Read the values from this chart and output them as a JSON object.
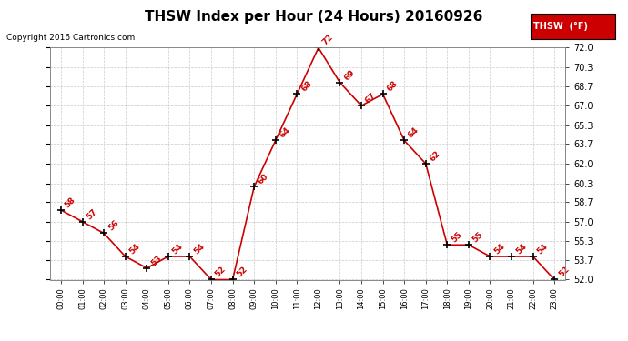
{
  "title": "THSW Index per Hour (24 Hours) 20160926",
  "copyright": "Copyright 2016 Cartronics.com",
  "legend_label": "THSW  (°F)",
  "hours": [
    0,
    1,
    2,
    3,
    4,
    5,
    6,
    7,
    8,
    9,
    10,
    11,
    12,
    13,
    14,
    15,
    16,
    17,
    18,
    19,
    20,
    21,
    22,
    23
  ],
  "values": [
    58,
    57,
    56,
    54,
    53,
    54,
    54,
    52,
    52,
    60,
    64,
    68,
    72,
    69,
    67,
    68,
    64,
    62,
    55,
    55,
    54,
    54,
    54,
    52
  ],
  "ylim": [
    52.0,
    72.0
  ],
  "yticks": [
    52.0,
    53.7,
    55.3,
    57.0,
    58.7,
    60.3,
    62.0,
    63.7,
    65.3,
    67.0,
    68.7,
    70.3,
    72.0
  ],
  "line_color": "#cc0000",
  "marker_color": "#000000",
  "label_color": "#cc0000",
  "background_color": "#ffffff",
  "grid_color": "#bbbbbb",
  "title_fontsize": 11,
  "copyright_fontsize": 6.5,
  "label_fontsize": 6.5,
  "legend_bg": "#cc0000",
  "legend_text_color": "#ffffff",
  "legend_fontsize": 7
}
